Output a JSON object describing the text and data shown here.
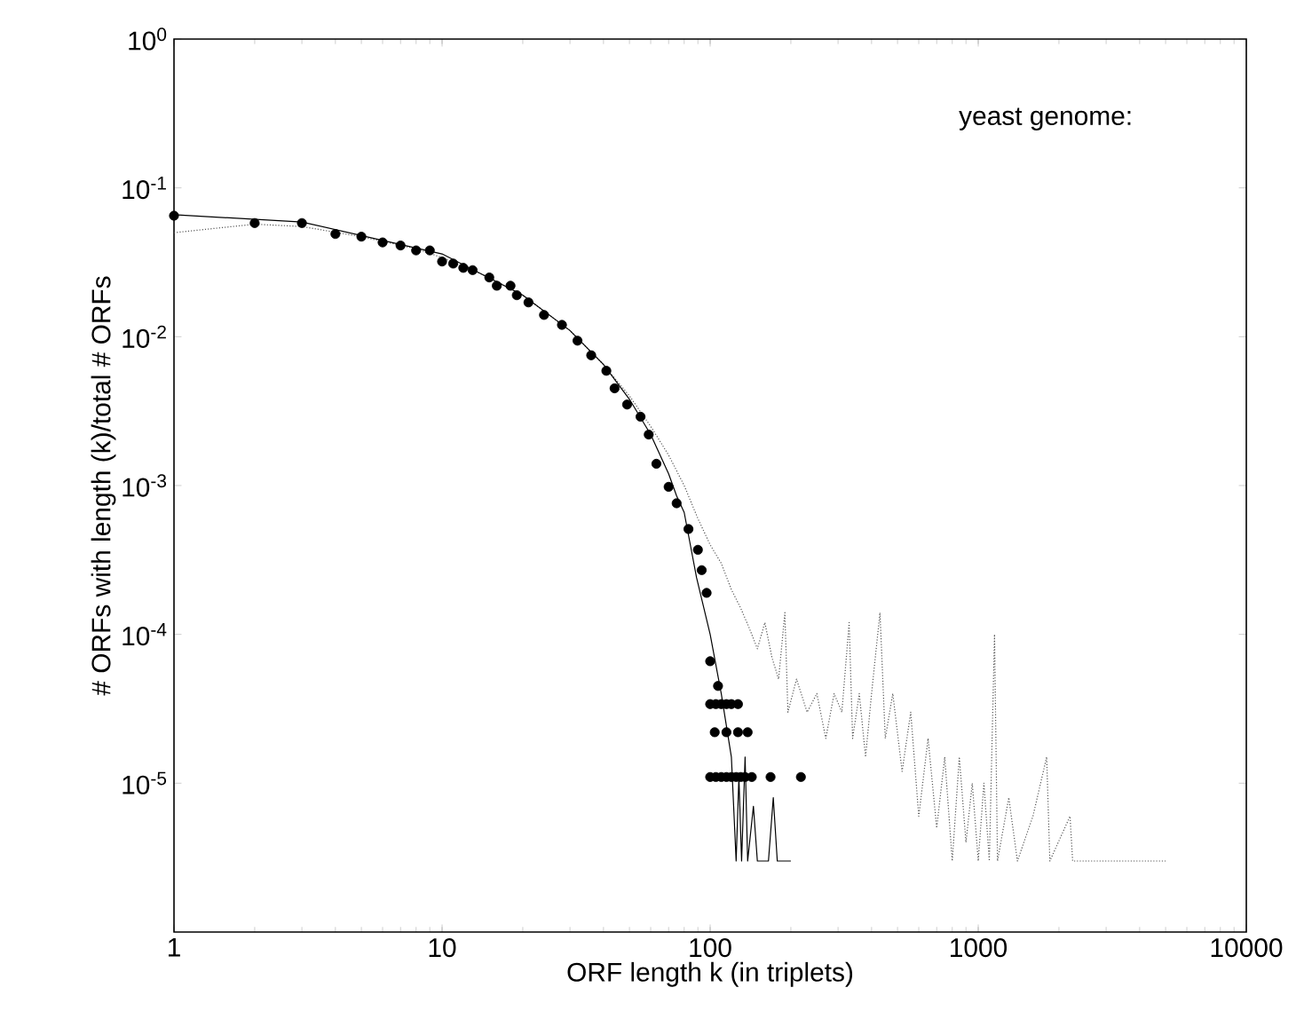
{
  "chart_data": {
    "type": "line",
    "xlabel": "ORF length k (in triplets)",
    "ylabel": "# ORFs with length (k)/total #  ORFs",
    "annotations": [
      "yeast genome:"
    ],
    "log": "xy",
    "grid": false,
    "xlim": [
      1,
      10000
    ],
    "ylim": [
      1e-06,
      1
    ],
    "xticks": [
      1,
      10,
      100,
      1000,
      10000
    ],
    "yticks": [
      {
        "value": 1,
        "label": "10$^{0}$"
      },
      {
        "value": 0.1,
        "label": "10$^{-1}$"
      },
      {
        "value": 0.01,
        "label": "10$^{-2}$"
      },
      {
        "value": 0.001,
        "label": "10$^{-3}$"
      },
      {
        "value": 0.0001,
        "label": "10$^{-4}$"
      },
      {
        "value": 1e-05,
        "label": "10$^{-5}$"
      }
    ],
    "series": [
      {
        "line_style": "dotted",
        "marker": "none",
        "color": "#555555",
        "x": [
          1,
          2,
          3,
          5,
          8,
          10,
          15,
          20,
          30,
          40,
          50,
          60,
          70,
          80,
          90,
          100,
          110,
          120,
          130,
          140,
          150,
          160,
          170,
          180,
          190,
          195,
          210,
          230,
          250,
          270,
          290,
          310,
          330,
          340,
          360,
          380,
          400,
          430,
          450,
          480,
          520,
          560,
          600,
          650,
          700,
          750,
          800,
          850,
          900,
          950,
          1000,
          1050,
          1100,
          1150,
          1180,
          1300,
          1400,
          1600,
          1800,
          1850,
          2200,
          2250,
          5000
        ],
        "values": [
          0.05,
          0.057,
          0.055,
          0.047,
          0.039,
          0.034,
          0.025,
          0.019,
          0.011,
          0.0065,
          0.004,
          0.0025,
          0.0016,
          0.001,
          0.0006,
          0.0004,
          0.0003,
          0.0002,
          0.00015,
          0.00011,
          8e-05,
          0.00012,
          7e-05,
          5e-05,
          0.00014,
          3e-05,
          5e-05,
          3e-05,
          4e-05,
          2e-05,
          4e-05,
          3e-05,
          0.00012,
          2e-05,
          4e-05,
          1.5e-05,
          4e-05,
          0.00014,
          2e-05,
          4e-05,
          1.2e-05,
          3e-05,
          6e-06,
          2e-05,
          5e-06,
          1.5e-05,
          3e-06,
          1.5e-05,
          4e-06,
          1e-05,
          3e-06,
          1e-05,
          3e-06,
          0.0001,
          3e-06,
          8e-06,
          3e-06,
          6e-06,
          1.5e-05,
          3e-06,
          6e-06,
          3e-06,
          3e-06
        ]
      },
      {
        "line_style": "solid",
        "marker": "none",
        "color": "#000000",
        "x": [
          1,
          3,
          10,
          20,
          30,
          40,
          50,
          60,
          70,
          75,
          80,
          89,
          100,
          110,
          120,
          125,
          128,
          131,
          135,
          138,
          145,
          150,
          165,
          172,
          178,
          200
        ],
        "values": [
          0.066,
          0.059,
          0.036,
          0.019,
          0.011,
          0.0065,
          0.0038,
          0.0022,
          0.0012,
          0.00085,
          0.00066,
          0.00024,
          0.0001,
          4e-05,
          1.5e-05,
          3e-06,
          1.1e-05,
          3e-06,
          1.5e-05,
          3e-06,
          7e-06,
          3e-06,
          3e-06,
          8e-06,
          3e-06,
          3e-06
        ]
      },
      {
        "type": "scatter",
        "marker": "circle",
        "color": "#000000",
        "x": [
          1,
          2,
          3,
          4,
          5,
          6,
          7,
          8,
          9,
          10,
          11,
          12,
          13,
          15,
          16,
          18,
          19,
          21,
          24,
          28,
          32,
          36,
          41,
          44,
          49,
          55,
          59,
          63,
          70,
          75,
          83,
          90,
          93,
          97,
          100,
          107,
          100,
          105,
          110,
          115,
          120,
          127,
          104,
          115,
          127,
          138,
          100,
          105,
          110,
          115,
          120,
          125,
          130,
          135,
          143,
          168,
          218
        ],
        "values": [
          0.065,
          0.058,
          0.058,
          0.049,
          0.047,
          0.043,
          0.041,
          0.038,
          0.038,
          0.032,
          0.031,
          0.029,
          0.028,
          0.025,
          0.022,
          0.022,
          0.019,
          0.017,
          0.014,
          0.012,
          0.0094,
          0.0075,
          0.0059,
          0.0045,
          0.0035,
          0.0029,
          0.0022,
          0.0014,
          0.00098,
          0.00076,
          0.00051,
          0.00037,
          0.00027,
          0.00019,
          6.6e-05,
          4.5e-05,
          3.4e-05,
          3.4e-05,
          3.4e-05,
          3.4e-05,
          3.4e-05,
          3.4e-05,
          2.2e-05,
          2.2e-05,
          2.2e-05,
          2.2e-05,
          1.1e-05,
          1.1e-05,
          1.1e-05,
          1.1e-05,
          1.1e-05,
          1.1e-05,
          1.1e-05,
          1.1e-05,
          1.1e-05,
          1.1e-05,
          1.1e-05
        ]
      }
    ]
  }
}
